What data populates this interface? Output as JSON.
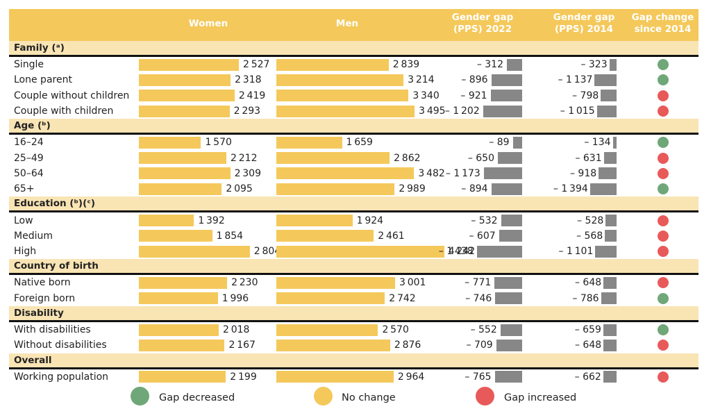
{
  "chart_data": {
    "type": "table",
    "title": "",
    "columns": [
      "",
      "Women",
      "Men",
      "Gender gap (PPS) 2022",
      "Gender gap (PPS) 2014",
      "Gap change since 2014"
    ],
    "header": {
      "women": "Women",
      "men": "Men",
      "gap2022_line1": "Gender gap",
      "gap2022_line2": "(PPS) 2022",
      "gap2014_line1": "Gender gap",
      "gap2014_line2": "(PPS) 2014",
      "change_line1": "Gap change",
      "change_line2": "since 2014"
    },
    "sections": [
      {
        "label": "Family (ᵃ)",
        "rows": [
          {
            "label": "Single",
            "women": 2527,
            "men": 2839,
            "gap2022": -312,
            "gap2014": -323,
            "change": "decreased"
          },
          {
            "label": "Lone parent",
            "women": 2318,
            "men": 3214,
            "gap2022": -896,
            "gap2014": -1137,
            "change": "decreased"
          },
          {
            "label": "Couple without children",
            "women": 2419,
            "men": 3340,
            "gap2022": -921,
            "gap2014": -798,
            "change": "increased"
          },
          {
            "label": "Couple with children",
            "women": 2293,
            "men": 3495,
            "gap2022": -1202,
            "gap2014": -1015,
            "change": "increased"
          }
        ]
      },
      {
        "label": "Age (ᵇ)",
        "rows": [
          {
            "label": "16–24",
            "women": 1570,
            "men": 1659,
            "gap2022": -89,
            "gap2014": -134,
            "change": "decreased"
          },
          {
            "label": "25–49",
            "women": 2212,
            "men": 2862,
            "gap2022": -650,
            "gap2014": -631,
            "change": "increased"
          },
          {
            "label": "50–64",
            "women": 2309,
            "men": 3482,
            "gap2022": -1173,
            "gap2014": -918,
            "change": "increased"
          },
          {
            "label": "65+",
            "women": 2095,
            "men": 2989,
            "gap2022": -894,
            "gap2014": -1394,
            "change": "decreased"
          }
        ]
      },
      {
        "label": "Education (ᵇ)(ᶜ)",
        "rows": [
          {
            "label": "Low",
            "women": 1392,
            "men": 1924,
            "gap2022": -532,
            "gap2014": -528,
            "change": "increased"
          },
          {
            "label": "Medium",
            "women": 1854,
            "men": 2461,
            "gap2022": -607,
            "gap2014": -568,
            "change": "increased"
          },
          {
            "label": "High",
            "women": 2804,
            "men": 4242,
            "gap2022": -1438,
            "gap2014": -1101,
            "change": "increased"
          }
        ]
      },
      {
        "label": "Country of birth",
        "rows": [
          {
            "label": "Native born",
            "women": 2230,
            "men": 3001,
            "gap2022": -771,
            "gap2014": -648,
            "change": "increased"
          },
          {
            "label": "Foreign born",
            "women": 1996,
            "men": 2742,
            "gap2022": -746,
            "gap2014": -786,
            "change": "decreased"
          }
        ]
      },
      {
        "label": "Disability",
        "rows": [
          {
            "label": "With disabilities",
            "women": 2018,
            "men": 2570,
            "gap2022": -552,
            "gap2014": -659,
            "change": "decreased"
          },
          {
            "label": "Without disabilities",
            "women": 2167,
            "men": 2876,
            "gap2022": -709,
            "gap2014": -648,
            "change": "increased"
          }
        ]
      },
      {
        "label": "Overall",
        "rows": [
          {
            "label": "Working population",
            "women": 2199,
            "men": 2964,
            "gap2022": -765,
            "gap2014": -662,
            "change": "increased"
          }
        ]
      }
    ],
    "legend": [
      {
        "key": "decreased",
        "label": "Gap decreased",
        "color": "#6fa779"
      },
      {
        "key": "nochange",
        "label": "No change",
        "color": "#f4c85a"
      },
      {
        "key": "increased",
        "label": "Gap increased",
        "color": "#e85a5a"
      }
    ],
    "colors": {
      "header_bg": "#f4c85a",
      "section_bg": "#f9e4b4",
      "bar": "#f4c85a",
      "gap_bar": "#878787"
    }
  }
}
